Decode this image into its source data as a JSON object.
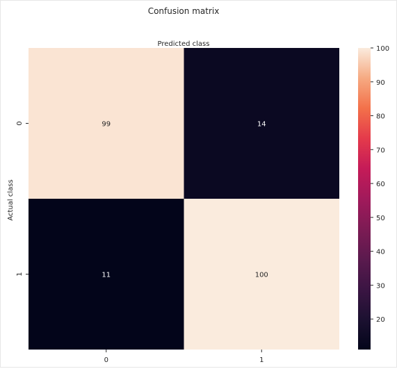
{
  "chart_data": {
    "type": "heatmap",
    "title": "Confusion matrix",
    "xlabel": "Predicted class",
    "ylabel": "Actual class",
    "x_categories": [
      "0",
      "1"
    ],
    "y_categories": [
      "0",
      "1"
    ],
    "values": [
      [
        99,
        14
      ],
      [
        11,
        100
      ]
    ],
    "colorbar": {
      "ticks": [
        20,
        30,
        40,
        50,
        60,
        70,
        80,
        90,
        100
      ],
      "range": [
        11,
        100
      ],
      "colormap": "rocket"
    },
    "annotations": true,
    "x_axis_position": "bottom",
    "xlabel_position": "top"
  },
  "colors": {
    "low": "#03051a",
    "high": "#faebdd",
    "text_on_dark": "#ffffff",
    "text_on_light": "#262626"
  }
}
